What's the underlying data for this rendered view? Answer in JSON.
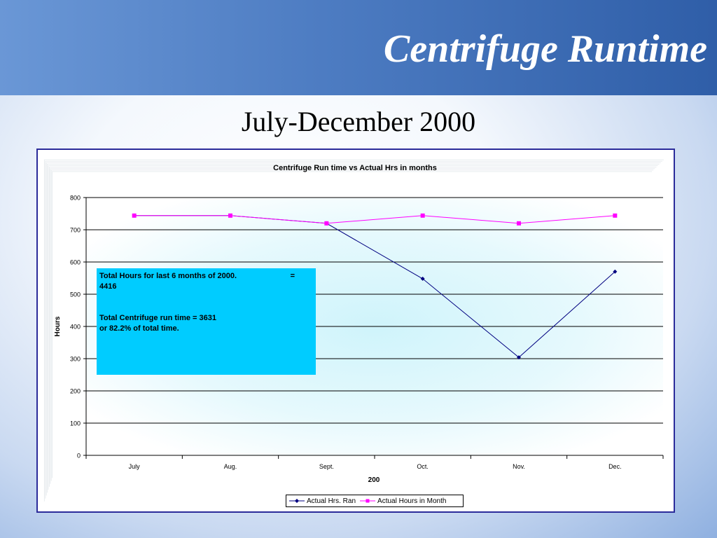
{
  "slide": {
    "title": "Centrifuge Runtime",
    "subtitle": "July-December 2000"
  },
  "chart_data": {
    "type": "line",
    "title": "Centrifuge Run time vs Actual Hrs in months",
    "xlabel": "200",
    "ylabel": "Hours",
    "categories": [
      "July",
      "Aug.",
      "Sept.",
      "Oct.",
      "Nov.",
      "Dec."
    ],
    "ylim": [
      0,
      800
    ],
    "yticks": [
      0,
      100,
      200,
      300,
      400,
      500,
      600,
      700,
      800
    ],
    "grid": true,
    "legend_position": "bottom",
    "series": [
      {
        "name": "Actual Hrs. Ran",
        "values": [
          744,
          744,
          720,
          548,
          304,
          570
        ],
        "color": "#000080",
        "marker": "diamond"
      },
      {
        "name": "Actual Hours in Month",
        "values": [
          744,
          744,
          720,
          744,
          720,
          744
        ],
        "color": "#ff00ff",
        "marker": "square"
      }
    ],
    "annotation": {
      "line1": "Total Hours for last 6 months of 2000.",
      "line1_suffix": "=",
      "line2": "4416",
      "line3": "Total Centrifuge run time = 3631",
      "line4": "or 82.2% of total time.",
      "color": "#00ccff"
    }
  }
}
